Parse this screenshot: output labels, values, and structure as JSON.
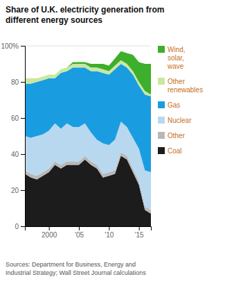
{
  "chart_data": {
    "type": "area",
    "stacked": true,
    "title": "Share of U.K. electricity generation from\ndifferent energy sources",
    "source": "Sources: Department for Business, Energy and\nIndustrial Strategy; Wall Street Journal calculations",
    "x": [
      1996,
      1997,
      1998,
      1999,
      2000,
      2001,
      2002,
      2003,
      2004,
      2005,
      2006,
      2007,
      2008,
      2009,
      2010,
      2011,
      2012,
      2013,
      2014,
      2015,
      2016,
      2017
    ],
    "series": [
      {
        "name": "Coal",
        "color": "#1c1c1c",
        "values": [
          29,
          27,
          26,
          28,
          30,
          34,
          32,
          34,
          34,
          34,
          37,
          34,
          32,
          27,
          28,
          29,
          39,
          37,
          30,
          23,
          9,
          7
        ]
      },
      {
        "name": "Other",
        "color": "#b8b8b8",
        "values": [
          2,
          2,
          2,
          2,
          2,
          2,
          2,
          2,
          2,
          2,
          2,
          2,
          2,
          2,
          2,
          2,
          2,
          2,
          2,
          2,
          2,
          2
        ]
      },
      {
        "name": "Nuclear",
        "color": "#b8d8f0",
        "values": [
          19,
          20,
          22,
          21,
          21,
          21,
          20,
          21,
          19,
          19,
          18,
          16,
          14,
          17,
          15,
          17,
          17,
          16,
          17,
          18,
          20,
          21
        ]
      },
      {
        "name": "Gas",
        "color": "#1a9de0",
        "values": [
          29,
          30,
          30,
          30,
          29,
          25,
          31,
          29,
          33,
          33,
          31,
          34,
          38,
          39,
          39,
          39,
          32,
          33,
          35,
          35,
          42,
          42
        ]
      },
      {
        "name": "Other\nrenewables",
        "color": "#c8e8a0",
        "values": [
          3,
          3,
          2,
          2,
          2,
          2,
          2,
          2,
          2,
          2,
          2,
          2,
          2,
          2,
          2,
          2,
          2,
          2,
          2,
          2,
          2,
          1
        ]
      },
      {
        "name": "Wind,\nsolar,\nwave",
        "color": "#3daf2c",
        "values": [
          0,
          0,
          0,
          0,
          0,
          0,
          0,
          0,
          1,
          1,
          1,
          2,
          2,
          3,
          3,
          4,
          5,
          6,
          9,
          11,
          15,
          17
        ]
      }
    ],
    "xlim": [
      1996,
      2017
    ],
    "xticks": [
      2000,
      {
        "value": 2005,
        "label": "'05"
      },
      {
        "value": 2010,
        "label": "'10"
      },
      {
        "value": 2015,
        "label": "'15"
      }
    ],
    "ylim": [
      0,
      100
    ],
    "yticks": [
      0,
      20,
      40,
      60,
      80,
      {
        "value": 100,
        "label": "100%"
      }
    ],
    "grid": true,
    "legend": "right"
  }
}
